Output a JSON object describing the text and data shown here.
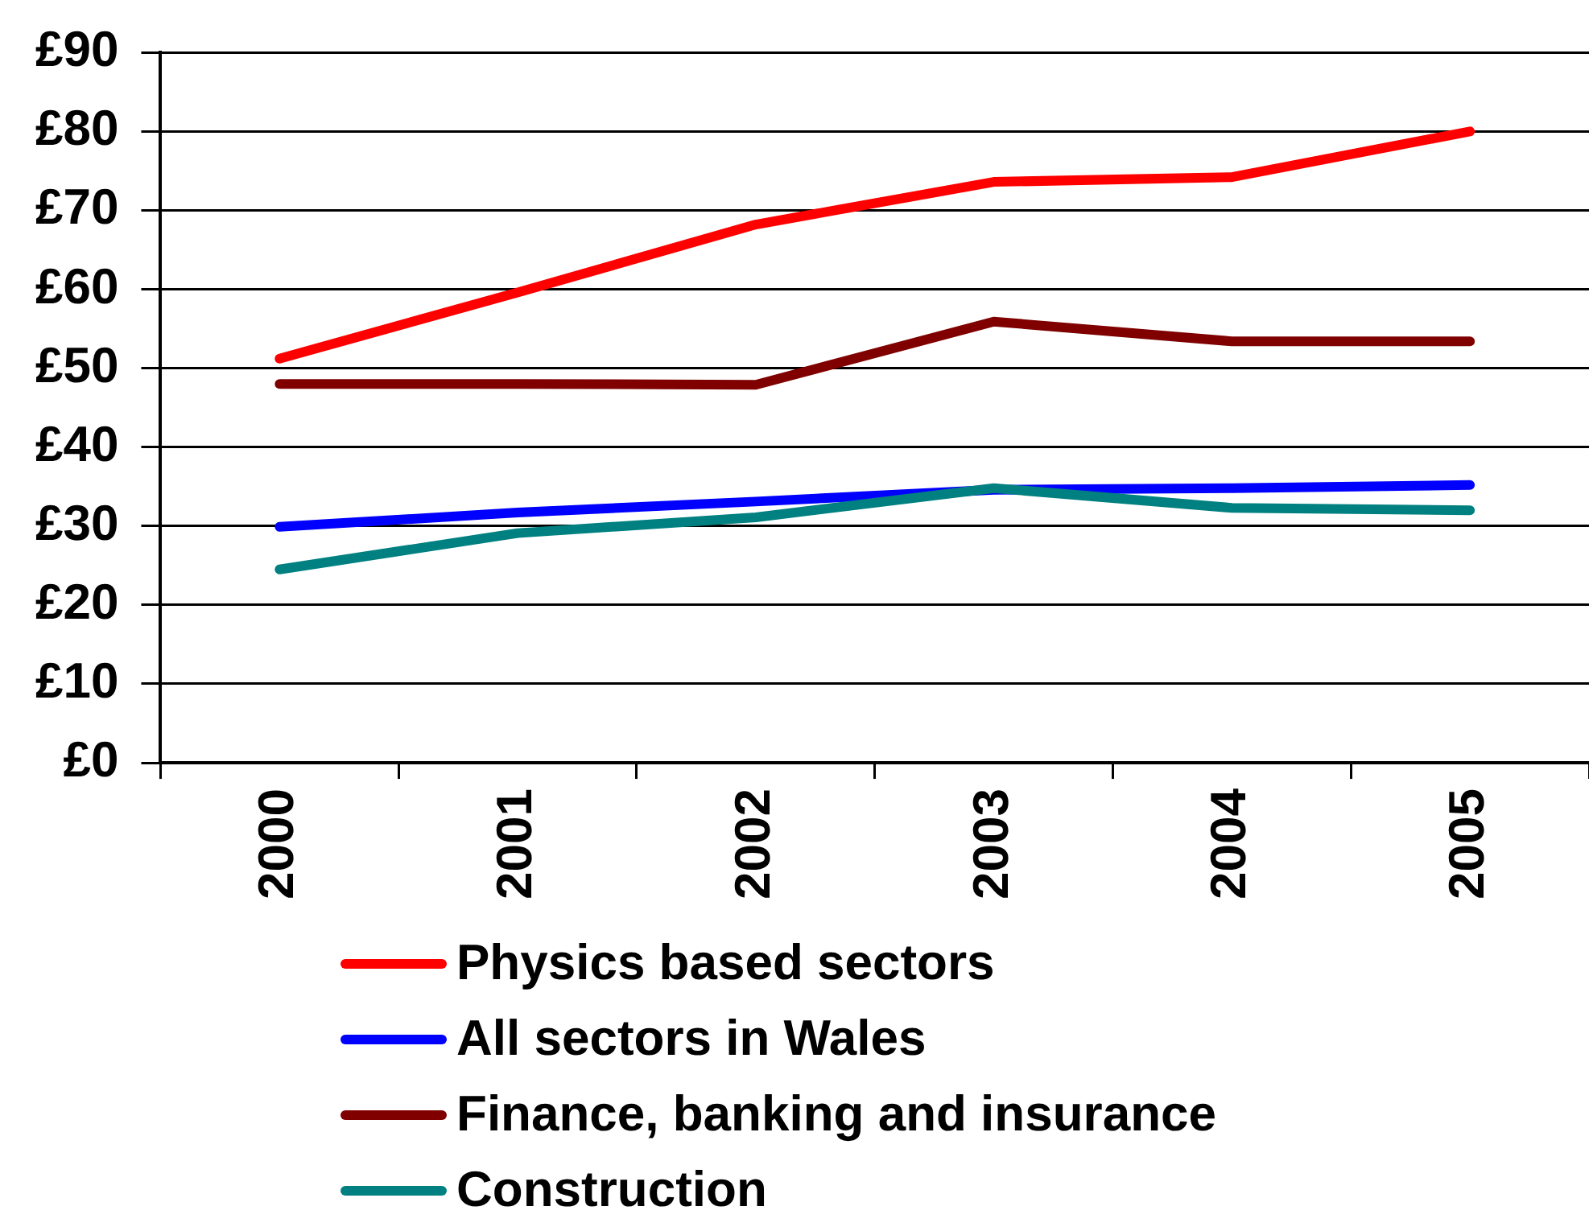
{
  "chart_data": {
    "type": "line",
    "categories": [
      "2000",
      "2001",
      "2002",
      "2003",
      "2004",
      "2005"
    ],
    "series": [
      {
        "name": "Physics based sectors",
        "color": "#ff0000",
        "values": [
          51.2,
          59.6,
          68.2,
          73.6,
          74.2,
          80
        ]
      },
      {
        "name": "All sectors in Wales",
        "color": "#0000ff",
        "values": [
          29.9,
          31.7,
          33.1,
          34.6,
          34.8,
          35.2
        ]
      },
      {
        "name": "Finance, banking and insurance",
        "color": "#800000",
        "values": [
          48,
          48,
          47.9,
          55.9,
          53.4,
          53.4
        ]
      },
      {
        "name": "Construction",
        "color": "#008080",
        "values": [
          24.5,
          29.1,
          31.1,
          34.8,
          32.3,
          32
        ]
      }
    ],
    "ylim": [
      0,
      90
    ],
    "yticks": [
      {
        "value": 0,
        "label": "£0"
      },
      {
        "value": 10,
        "label": "£10"
      },
      {
        "value": 20,
        "label": "£20"
      },
      {
        "value": 30,
        "label": "£30"
      },
      {
        "value": 40,
        "label": "£40"
      },
      {
        "value": 50,
        "label": "£50"
      },
      {
        "value": 60,
        "label": "£60"
      },
      {
        "value": 70,
        "label": "£70"
      },
      {
        "value": 80,
        "label": "£80"
      },
      {
        "value": 90,
        "label": "£90"
      }
    ],
    "grid": "y",
    "legend": "bottom",
    "marker": "none",
    "line_style": "solid"
  }
}
